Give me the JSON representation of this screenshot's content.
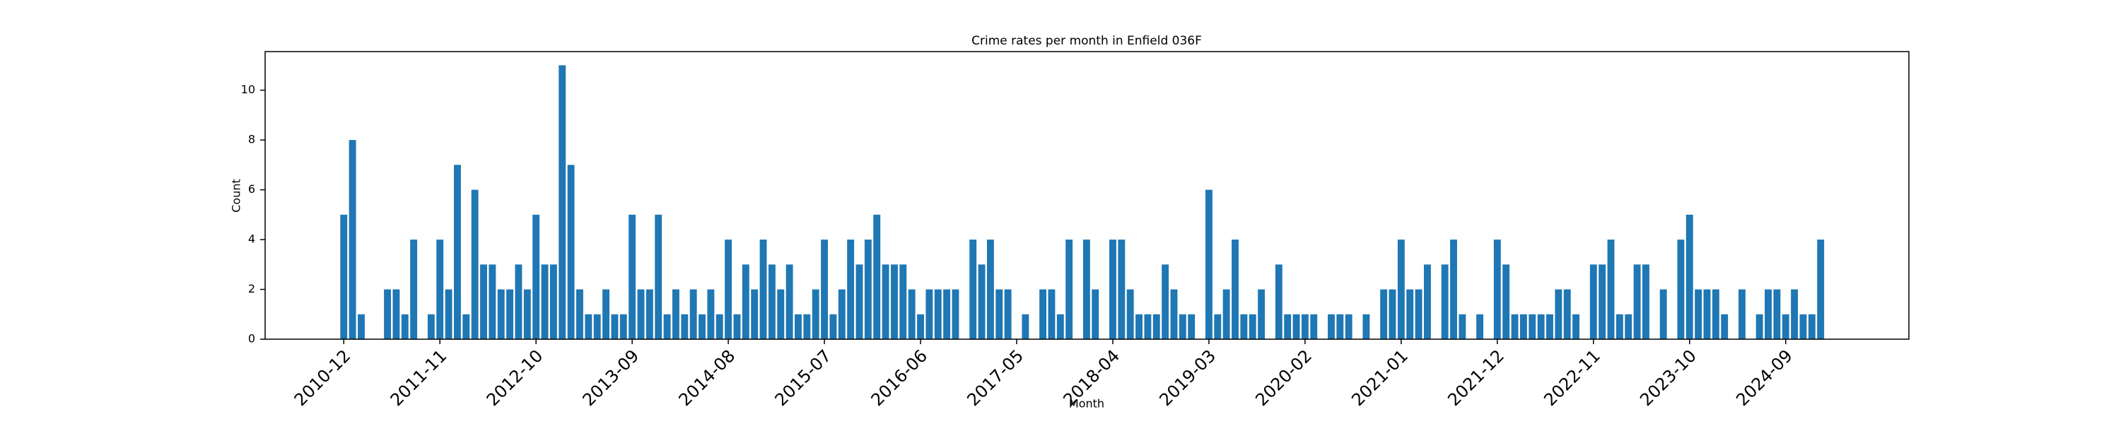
{
  "chart_data": {
    "type": "bar",
    "title": "Crime rates per month in Enfield 036F",
    "x_label": "Month",
    "y_label": "Count",
    "categories": [
      "2010-12",
      null,
      null,
      null,
      null,
      null,
      null,
      null,
      null,
      null,
      null,
      "2011-11",
      null,
      null,
      null,
      null,
      null,
      null,
      null,
      null,
      null,
      null,
      "2012-10",
      null,
      null,
      null,
      null,
      null,
      null,
      null,
      null,
      null,
      null,
      "2013-09",
      null,
      null,
      null,
      null,
      null,
      null,
      null,
      null,
      null,
      null,
      "2014-08",
      null,
      null,
      null,
      null,
      null,
      null,
      null,
      null,
      null,
      null,
      "2015-07",
      null,
      null,
      null,
      null,
      null,
      null,
      null,
      null,
      null,
      null,
      "2016-06",
      null,
      null,
      null,
      null,
      null,
      null,
      null,
      null,
      null,
      null,
      "2017-05",
      null,
      null,
      null,
      null,
      null,
      null,
      null,
      null,
      null,
      null,
      "2018-04",
      null,
      null,
      null,
      null,
      null,
      null,
      null,
      null,
      null,
      null,
      "2019-03",
      null,
      null,
      null,
      null,
      null,
      null,
      null,
      null,
      null,
      null,
      "2020-02",
      null,
      null,
      null,
      null,
      null,
      null,
      null,
      null,
      null,
      null,
      "2021-01",
      null,
      null,
      null,
      null,
      null,
      null,
      null,
      null,
      null,
      null,
      "2021-12",
      null,
      null,
      null,
      null,
      null,
      null,
      null,
      null,
      null,
      null,
      "2022-11",
      null,
      null,
      null,
      null,
      null,
      null,
      null,
      null,
      null,
      null,
      "2023-10",
      null,
      null,
      null,
      null,
      null,
      null,
      null,
      null,
      null,
      null,
      "2024-09",
      null,
      null,
      null,
      null
    ],
    "values": [
      5,
      8,
      1,
      0,
      0,
      2,
      2,
      1,
      4,
      0,
      1,
      4,
      2,
      7,
      1,
      6,
      3,
      3,
      2,
      2,
      3,
      2,
      5,
      3,
      3,
      11,
      7,
      2,
      1,
      1,
      2,
      1,
      1,
      5,
      2,
      2,
      5,
      1,
      2,
      1,
      2,
      1,
      2,
      1,
      4,
      1,
      3,
      2,
      4,
      3,
      2,
      3,
      1,
      1,
      2,
      4,
      1,
      2,
      4,
      3,
      4,
      5,
      3,
      3,
      3,
      2,
      1,
      2,
      2,
      2,
      2,
      0,
      4,
      3,
      4,
      2,
      2,
      0,
      1,
      0,
      2,
      2,
      1,
      4,
      0,
      4,
      2,
      0,
      4,
      4,
      2,
      1,
      1,
      1,
      3,
      2,
      1,
      1,
      0,
      6,
      1,
      2,
      4,
      1,
      1,
      2,
      0,
      3,
      1,
      1,
      1,
      1,
      0,
      1,
      1,
      1,
      0,
      1,
      0,
      2,
      2,
      4,
      2,
      2,
      3,
      0,
      3,
      4,
      1,
      0,
      1,
      0,
      4,
      3,
      1,
      1,
      1,
      1,
      1,
      2,
      2,
      1,
      0,
      3,
      3,
      4,
      1,
      1,
      3,
      3,
      0,
      2,
      0,
      4,
      5,
      2,
      2,
      2,
      1,
      0,
      2,
      0,
      1,
      2,
      2,
      1,
      2,
      1,
      1,
      4
    ],
    "color": "#1f77b4",
    "ylim": [
      0,
      11.55
    ],
    "yticks": [
      0,
      2,
      4,
      6,
      8,
      10
    ],
    "grid": false
  }
}
